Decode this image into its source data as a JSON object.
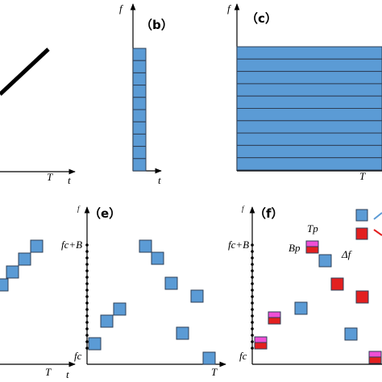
{
  "panels": {
    "a": {
      "x_axis": "T",
      "t_axis": "t"
    },
    "b": {
      "label": "（b）",
      "f_axis": "f",
      "t_axis": "t"
    },
    "c": {
      "label": "（c）",
      "f_axis": "f",
      "x_axis": "T"
    },
    "d": {
      "x_axis": "T",
      "t_axis": "t"
    },
    "e": {
      "label": "（e）",
      "f_axis": "f",
      "fc_B": "fc+B",
      "fc": "fc",
      "x_axis": "T"
    },
    "f": {
      "label": "（f）",
      "f_axis": "f",
      "fc_B": "fc+B",
      "fc": "fc",
      "tp": "Tp",
      "bp": "Bp",
      "delta_f": "Δf"
    }
  },
  "colors": {
    "blue": "#5b9bd5",
    "edge": "#2e3f57",
    "red": "#e32020",
    "pink": "#ef4fd6"
  }
}
